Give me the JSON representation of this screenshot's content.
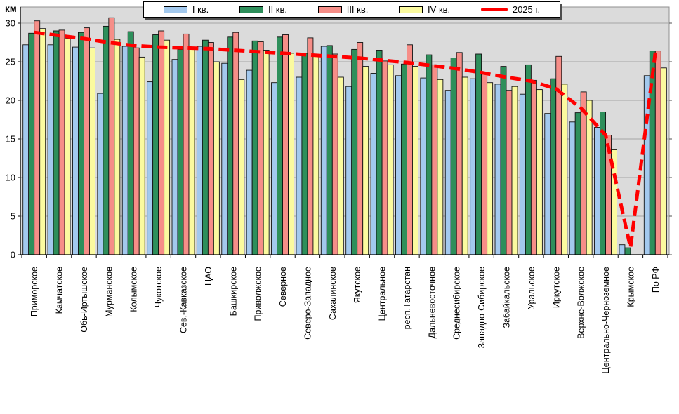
{
  "chart_data": {
    "type": "bar",
    "title": "",
    "ylabel": "км",
    "xlabel": "",
    "ylim": [
      0,
      30
    ],
    "yticks": [
      0,
      5,
      10,
      15,
      20,
      25,
      30
    ],
    "grid": true,
    "legend_position": "top",
    "plot_bg": "#dbdbdb",
    "grid_color": "#a6a6a6",
    "categories": [
      "Приморское",
      "Камчатское",
      "Обь-Иртышское",
      "Мурманское",
      "Колымское",
      "Чукотское",
      "Сев.-Кавказское",
      "ЦАО",
      "Башкирское",
      "Приволжское",
      "Северное",
      "Северо-Западное",
      "Сахалинское",
      "Якутское",
      "Центральное",
      "респ.Татарстан",
      "Дальневосточное",
      "Среднесибирское",
      "Западно-Сибирское",
      "Забайкальское",
      "Уральское",
      "Иркутское",
      "Верхне-Волжское",
      "Центрально-Черноземное",
      "Крымское",
      "По РФ"
    ],
    "series": [
      {
        "name": "I кв.",
        "color": "#a3c9ee",
        "values": [
          27.2,
          27.2,
          26.9,
          20.9,
          27.0,
          22.4,
          25.3,
          27.0,
          24.8,
          23.9,
          22.3,
          23.0,
          27.0,
          21.8,
          23.5,
          23.2,
          22.9,
          21.3,
          22.8,
          22.1,
          20.8,
          18.3,
          17.2,
          16.5,
          1.3,
          23.2
        ]
      },
      {
        "name": "II кв.",
        "color": "#2e8f5b",
        "values": [
          28.7,
          29.0,
          28.8,
          29.6,
          28.9,
          28.5,
          26.6,
          27.8,
          28.2,
          27.7,
          28.2,
          26.1,
          27.1,
          26.6,
          26.5,
          24.7,
          25.9,
          25.5,
          26.0,
          24.4,
          24.6,
          22.8,
          18.4,
          18.5,
          0.9,
          26.4
        ]
      },
      {
        "name": "III кв.",
        "color": "#f68e88",
        "values": [
          30.3,
          29.1,
          29.4,
          30.7,
          26.8,
          29.0,
          28.6,
          27.5,
          28.8,
          27.6,
          28.5,
          28.1,
          26.0,
          27.5,
          25.1,
          27.2,
          24.6,
          26.2,
          23.4,
          21.3,
          22.6,
          25.7,
          21.1,
          15.5,
          0,
          26.4
        ]
      },
      {
        "name": "IV кв.",
        "color": "#fbfa9f",
        "values": [
          29.3,
          28.0,
          26.8,
          27.9,
          25.6,
          27.8,
          26.8,
          25.0,
          22.7,
          26.5,
          26.1,
          25.8,
          23.0,
          24.4,
          24.6,
          24.4,
          22.7,
          23.0,
          22.3,
          21.8,
          21.4,
          22.1,
          20.0,
          13.6,
          0,
          24.2
        ]
      }
    ],
    "line_series": {
      "name": "2025 г.",
      "color": "#ff0000",
      "style": "dashed",
      "values": [
        28.8,
        28.4,
        28.0,
        27.5,
        27.1,
        26.9,
        26.8,
        26.7,
        26.5,
        26.3,
        26.1,
        25.9,
        25.7,
        25.5,
        25.2,
        24.9,
        24.5,
        24.1,
        23.6,
        23.0,
        22.5,
        21.5,
        19.0,
        15.5,
        0.9,
        26.2
      ]
    }
  }
}
